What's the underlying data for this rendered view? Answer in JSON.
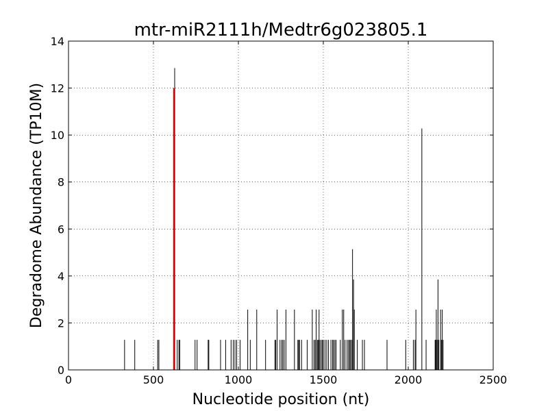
{
  "chart_data": {
    "type": "bar",
    "title": "mtr-miR2111h/Medtr6g023805.1",
    "xlabel": "Nucleotide position (nt)",
    "ylabel": "Degradome Abundance (TP10M)",
    "xlim": [
      0,
      2500
    ],
    "ylim": [
      0,
      14
    ],
    "xticks": [
      0,
      500,
      1000,
      1500,
      2000,
      2500
    ],
    "yticks": [
      0,
      2,
      4,
      6,
      8,
      10,
      12,
      14
    ],
    "grid": true,
    "series": [
      {
        "color": "#000000",
        "points": [
          {
            "x": 330,
            "y": 1.28
          },
          {
            "x": 390,
            "y": 1.28
          },
          {
            "x": 525,
            "y": 1.28
          },
          {
            "x": 532,
            "y": 1.28
          },
          {
            "x": 625,
            "y": 12.85
          },
          {
            "x": 640,
            "y": 1.28
          },
          {
            "x": 650,
            "y": 1.28
          },
          {
            "x": 655,
            "y": 1.28
          },
          {
            "x": 745,
            "y": 1.28
          },
          {
            "x": 757,
            "y": 1.28
          },
          {
            "x": 822,
            "y": 1.28
          },
          {
            "x": 826,
            "y": 1.28
          },
          {
            "x": 895,
            "y": 1.28
          },
          {
            "x": 925,
            "y": 1.28
          },
          {
            "x": 957,
            "y": 1.28
          },
          {
            "x": 970,
            "y": 1.28
          },
          {
            "x": 980,
            "y": 1.28
          },
          {
            "x": 990,
            "y": 1.28
          },
          {
            "x": 1010,
            "y": 1.28
          },
          {
            "x": 1055,
            "y": 2.57
          },
          {
            "x": 1070,
            "y": 1.28
          },
          {
            "x": 1108,
            "y": 2.57
          },
          {
            "x": 1160,
            "y": 1.28
          },
          {
            "x": 1215,
            "y": 1.28
          },
          {
            "x": 1220,
            "y": 1.28
          },
          {
            "x": 1228,
            "y": 2.57
          },
          {
            "x": 1245,
            "y": 1.28
          },
          {
            "x": 1255,
            "y": 1.28
          },
          {
            "x": 1262,
            "y": 1.28
          },
          {
            "x": 1270,
            "y": 1.28
          },
          {
            "x": 1280,
            "y": 2.57
          },
          {
            "x": 1330,
            "y": 2.57
          },
          {
            "x": 1350,
            "y": 1.28
          },
          {
            "x": 1355,
            "y": 1.28
          },
          {
            "x": 1360,
            "y": 1.28
          },
          {
            "x": 1372,
            "y": 1.28
          },
          {
            "x": 1405,
            "y": 1.28
          },
          {
            "x": 1435,
            "y": 2.57
          },
          {
            "x": 1445,
            "y": 1.28
          },
          {
            "x": 1452,
            "y": 1.28
          },
          {
            "x": 1458,
            "y": 2.57
          },
          {
            "x": 1465,
            "y": 1.28
          },
          {
            "x": 1470,
            "y": 1.28
          },
          {
            "x": 1475,
            "y": 2.57
          },
          {
            "x": 1480,
            "y": 1.28
          },
          {
            "x": 1488,
            "y": 1.28
          },
          {
            "x": 1495,
            "y": 1.28
          },
          {
            "x": 1500,
            "y": 1.28
          },
          {
            "x": 1510,
            "y": 1.28
          },
          {
            "x": 1520,
            "y": 1.28
          },
          {
            "x": 1530,
            "y": 1.28
          },
          {
            "x": 1545,
            "y": 1.28
          },
          {
            "x": 1555,
            "y": 1.28
          },
          {
            "x": 1560,
            "y": 1.28
          },
          {
            "x": 1568,
            "y": 1.28
          },
          {
            "x": 1575,
            "y": 1.28
          },
          {
            "x": 1600,
            "y": 1.28
          },
          {
            "x": 1612,
            "y": 2.57
          },
          {
            "x": 1620,
            "y": 2.57
          },
          {
            "x": 1628,
            "y": 1.28
          },
          {
            "x": 1640,
            "y": 1.28
          },
          {
            "x": 1648,
            "y": 1.28
          },
          {
            "x": 1655,
            "y": 1.28
          },
          {
            "x": 1660,
            "y": 1.28
          },
          {
            "x": 1668,
            "y": 1.28
          },
          {
            "x": 1672,
            "y": 5.14
          },
          {
            "x": 1678,
            "y": 3.85
          },
          {
            "x": 1682,
            "y": 2.57
          },
          {
            "x": 1700,
            "y": 1.28
          },
          {
            "x": 1730,
            "y": 1.28
          },
          {
            "x": 1742,
            "y": 1.28
          },
          {
            "x": 1875,
            "y": 1.28
          },
          {
            "x": 1985,
            "y": 1.28
          },
          {
            "x": 2030,
            "y": 1.28
          },
          {
            "x": 2040,
            "y": 1.28
          },
          {
            "x": 2045,
            "y": 2.57
          },
          {
            "x": 2080,
            "y": 10.28
          },
          {
            "x": 2105,
            "y": 1.28
          },
          {
            "x": 2158,
            "y": 1.28
          },
          {
            "x": 2162,
            "y": 1.28
          },
          {
            "x": 2165,
            "y": 2.57
          },
          {
            "x": 2170,
            "y": 1.28
          },
          {
            "x": 2175,
            "y": 3.85
          },
          {
            "x": 2180,
            "y": 1.28
          },
          {
            "x": 2190,
            "y": 2.57
          },
          {
            "x": 2195,
            "y": 1.28
          },
          {
            "x": 2200,
            "y": 2.57
          },
          {
            "x": 2205,
            "y": 1.28
          }
        ]
      },
      {
        "color": "#ff0000",
        "points": [
          {
            "x": 620,
            "y": 12.0
          }
        ]
      }
    ]
  }
}
